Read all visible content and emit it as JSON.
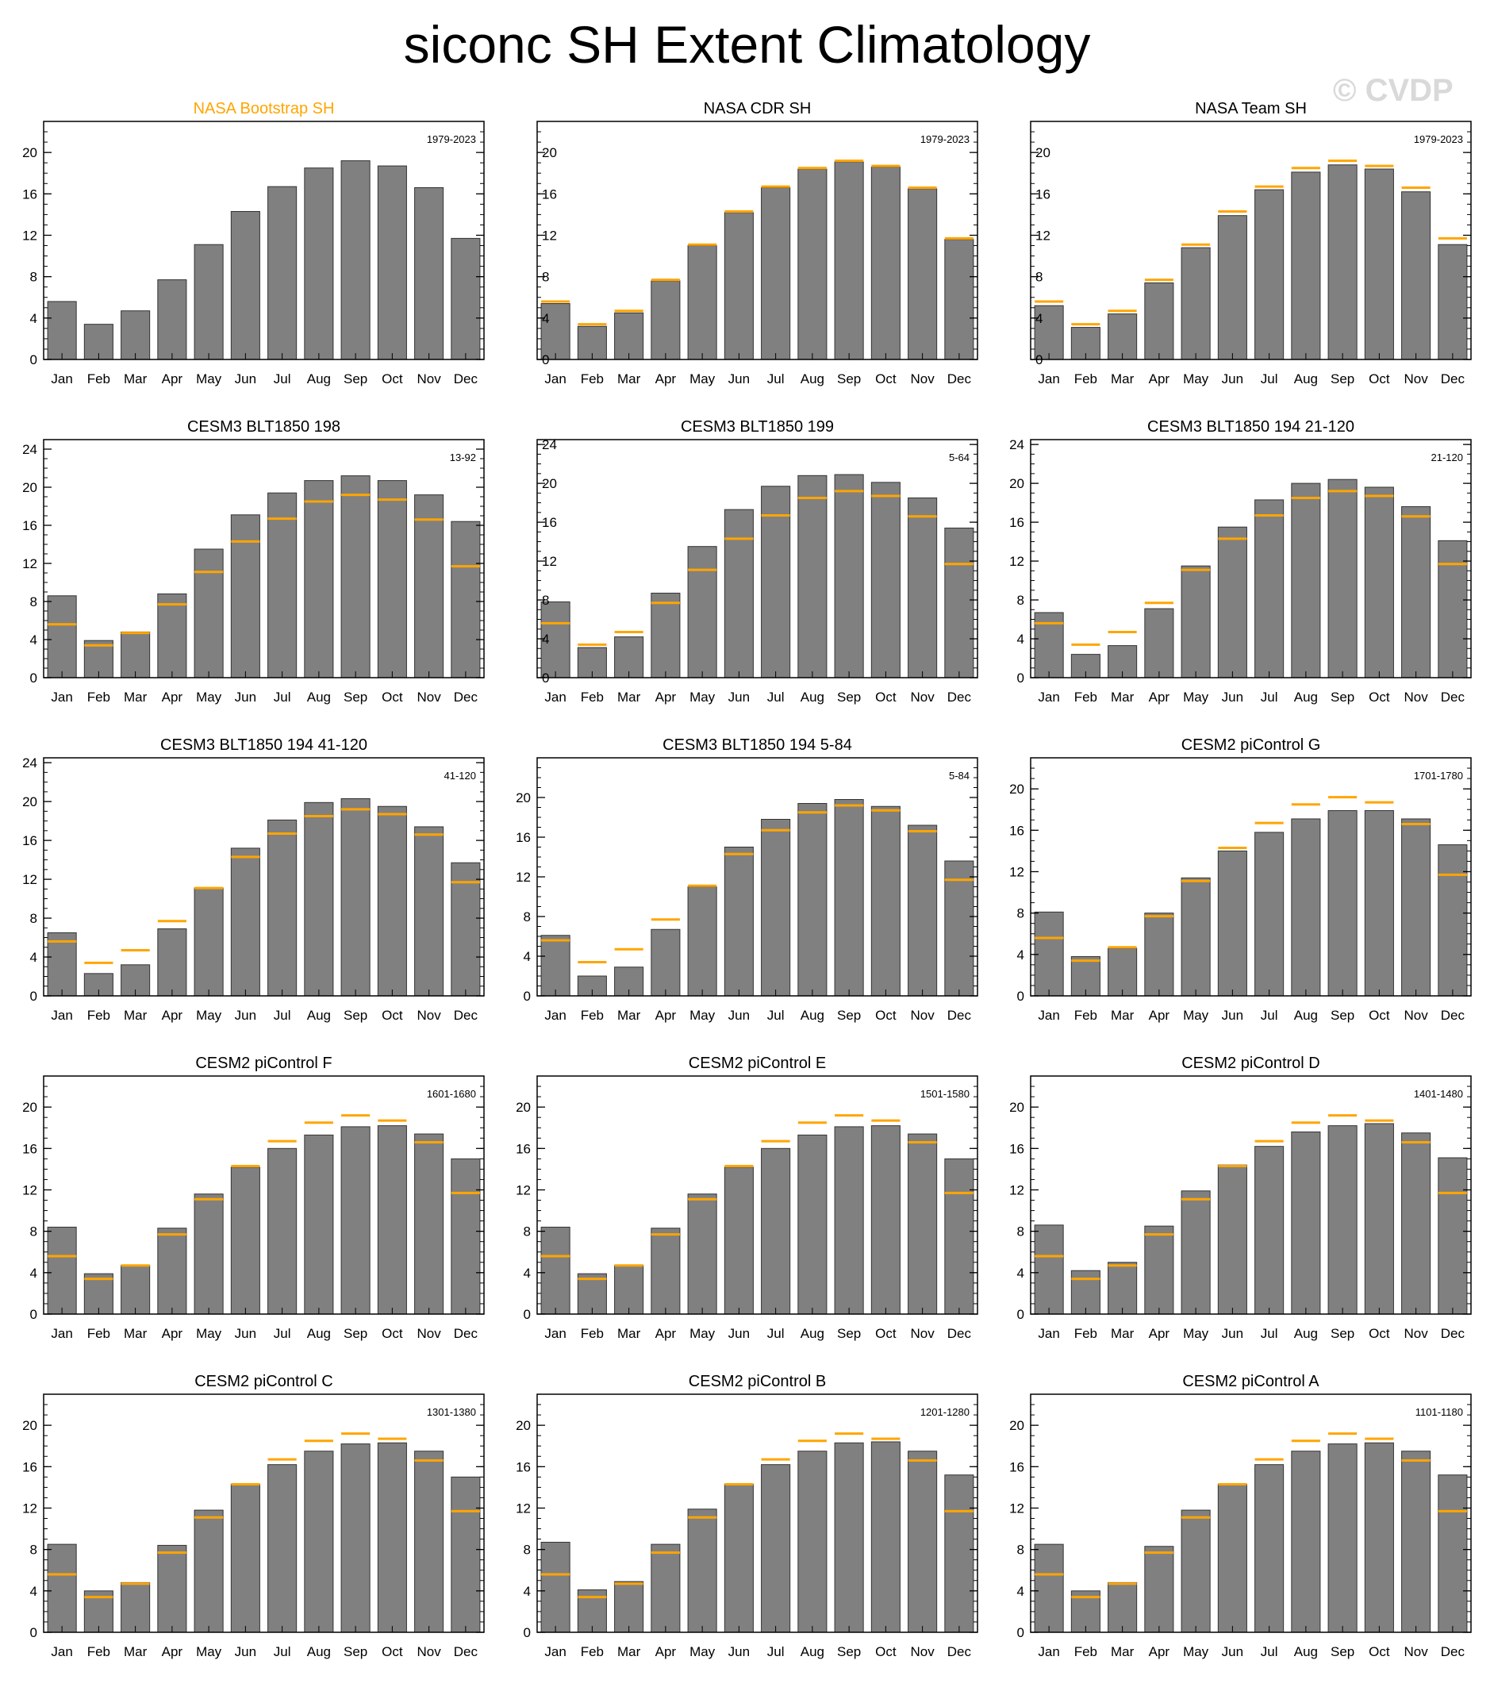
{
  "title": "siconc SH Extent Climatology",
  "watermark": "© CVDP",
  "colors": {
    "bar": "#808080",
    "reference": "#ffa500",
    "obs_title": "#ffa500"
  },
  "months": [
    "Jan",
    "Feb",
    "Mar",
    "Apr",
    "May",
    "Jun",
    "Jul",
    "Aug",
    "Sep",
    "Oct",
    "Nov",
    "Dec"
  ],
  "reference": [
    5.6,
    3.4,
    4.7,
    7.7,
    11.1,
    14.3,
    16.7,
    18.5,
    19.2,
    18.7,
    16.6,
    11.7
  ],
  "chart_data": [
    {
      "type": "bar",
      "title": "NASA Bootstrap SH",
      "period": "1979-2023",
      "ylim": [
        0,
        23
      ],
      "ticks": [
        0,
        4,
        8,
        12,
        16,
        20
      ],
      "ticks_side": "left",
      "title_color": "#ffa500",
      "show_ref": false,
      "values": [
        5.6,
        3.4,
        4.7,
        7.7,
        11.1,
        14.3,
        16.7,
        18.5,
        19.2,
        18.7,
        16.6,
        11.7
      ]
    },
    {
      "type": "bar",
      "title": "NASA CDR SH",
      "period": "1979-2023",
      "ylim": [
        0,
        23
      ],
      "ticks": [
        0,
        4,
        8,
        12,
        16,
        20
      ],
      "ticks_side": "right",
      "title_color": "#000000",
      "show_ref": true,
      "values": [
        5.4,
        3.2,
        4.5,
        7.6,
        11.0,
        14.2,
        16.6,
        18.4,
        19.1,
        18.6,
        16.5,
        11.6
      ]
    },
    {
      "type": "bar",
      "title": "NASA Team SH",
      "period": "1979-2023",
      "ylim": [
        0,
        23
      ],
      "ticks": [
        0,
        4,
        8,
        12,
        16,
        20
      ],
      "ticks_side": "right",
      "title_color": "#000000",
      "show_ref": true,
      "values": [
        5.2,
        3.1,
        4.4,
        7.4,
        10.8,
        13.9,
        16.4,
        18.1,
        18.8,
        18.4,
        16.2,
        11.1
      ]
    },
    {
      "type": "bar",
      "title": "CESM3 BLT1850 198",
      "period": "13-92",
      "ylim": [
        0,
        25
      ],
      "ticks": [
        0,
        4,
        8,
        12,
        16,
        20,
        24
      ],
      "ticks_side": "left",
      "title_color": "#000000",
      "show_ref": true,
      "values": [
        8.6,
        3.9,
        4.8,
        8.8,
        13.5,
        17.1,
        19.4,
        20.7,
        21.2,
        20.7,
        19.2,
        16.4
      ]
    },
    {
      "type": "bar",
      "title": "CESM3 BLT1850 199",
      "period": "5-64",
      "ylim": [
        0,
        24.5
      ],
      "ticks": [
        0,
        4,
        8,
        12,
        16,
        20,
        24
      ],
      "ticks_side": "right",
      "title_color": "#000000",
      "show_ref": true,
      "values": [
        7.8,
        3.1,
        4.2,
        8.7,
        13.5,
        17.3,
        19.7,
        20.8,
        20.9,
        20.1,
        18.5,
        15.4
      ]
    },
    {
      "type": "bar",
      "title": "CESM3 BLT1850 194 21-120",
      "period": "21-120",
      "ylim": [
        0,
        24.5
      ],
      "ticks": [
        0,
        4,
        8,
        12,
        16,
        20,
        24
      ],
      "ticks_side": "left",
      "title_color": "#000000",
      "show_ref": true,
      "values": [
        6.7,
        2.4,
        3.3,
        7.1,
        11.5,
        15.5,
        18.3,
        20.0,
        20.4,
        19.6,
        17.6,
        14.1
      ]
    },
    {
      "type": "bar",
      "title": "CESM3 BLT1850 194 41-120",
      "period": "41-120",
      "ylim": [
        0,
        24.5
      ],
      "ticks": [
        0,
        4,
        8,
        12,
        16,
        20,
        24
      ],
      "ticks_side": "left",
      "title_color": "#000000",
      "show_ref": true,
      "values": [
        6.5,
        2.3,
        3.2,
        6.9,
        11.1,
        15.2,
        18.1,
        19.9,
        20.3,
        19.5,
        17.4,
        13.7
      ]
    },
    {
      "type": "bar",
      "title": "CESM3 BLT1850 194 5-84",
      "period": "5-84",
      "ylim": [
        0,
        24
      ],
      "ticks": [
        0,
        4,
        8,
        12,
        16,
        20
      ],
      "ticks_side": "left",
      "title_color": "#000000",
      "show_ref": true,
      "values": [
        6.1,
        2.0,
        2.9,
        6.7,
        11.0,
        15.0,
        17.8,
        19.4,
        19.8,
        19.1,
        17.2,
        13.6
      ]
    },
    {
      "type": "bar",
      "title": "CESM2 piControl G",
      "period": "1701-1780",
      "ylim": [
        0,
        23
      ],
      "ticks": [
        0,
        4,
        8,
        12,
        16,
        20
      ],
      "ticks_side": "left",
      "title_color": "#000000",
      "show_ref": true,
      "values": [
        8.1,
        3.8,
        4.6,
        8.0,
        11.4,
        14.0,
        15.8,
        17.1,
        17.9,
        17.9,
        17.1,
        14.6
      ]
    },
    {
      "type": "bar",
      "title": "CESM2 piControl F",
      "period": "1601-1680",
      "ylim": [
        0,
        23
      ],
      "ticks": [
        0,
        4,
        8,
        12,
        16,
        20
      ],
      "ticks_side": "left",
      "title_color": "#000000",
      "show_ref": true,
      "values": [
        8.4,
        3.9,
        4.7,
        8.3,
        11.6,
        14.2,
        16.0,
        17.3,
        18.1,
        18.2,
        17.4,
        15.0
      ]
    },
    {
      "type": "bar",
      "title": "CESM2 piControl E",
      "period": "1501-1580",
      "ylim": [
        0,
        23
      ],
      "ticks": [
        0,
        4,
        8,
        12,
        16,
        20
      ],
      "ticks_side": "left",
      "title_color": "#000000",
      "show_ref": true,
      "values": [
        8.4,
        3.9,
        4.7,
        8.3,
        11.6,
        14.2,
        16.0,
        17.3,
        18.1,
        18.2,
        17.4,
        15.0
      ]
    },
    {
      "type": "bar",
      "title": "CESM2 piControl D",
      "period": "1401-1480",
      "ylim": [
        0,
        23
      ],
      "ticks": [
        0,
        4,
        8,
        12,
        16,
        20
      ],
      "ticks_side": "left",
      "title_color": "#000000",
      "show_ref": true,
      "values": [
        8.6,
        4.2,
        5.0,
        8.5,
        11.9,
        14.4,
        16.2,
        17.6,
        18.2,
        18.4,
        17.5,
        15.1
      ]
    },
    {
      "type": "bar",
      "title": "CESM2 piControl C",
      "period": "1301-1380",
      "ylim": [
        0,
        23
      ],
      "ticks": [
        0,
        4,
        8,
        12,
        16,
        20
      ],
      "ticks_side": "left",
      "title_color": "#000000",
      "show_ref": true,
      "values": [
        8.5,
        4.0,
        4.8,
        8.4,
        11.8,
        14.3,
        16.2,
        17.5,
        18.2,
        18.3,
        17.5,
        15.0
      ]
    },
    {
      "type": "bar",
      "title": "CESM2 piControl B",
      "period": "1201-1280",
      "ylim": [
        0,
        23
      ],
      "ticks": [
        0,
        4,
        8,
        12,
        16,
        20
      ],
      "ticks_side": "left",
      "title_color": "#000000",
      "show_ref": true,
      "values": [
        8.7,
        4.1,
        4.9,
        8.5,
        11.9,
        14.3,
        16.2,
        17.5,
        18.3,
        18.4,
        17.5,
        15.2
      ]
    },
    {
      "type": "bar",
      "title": "CESM2 piControl A",
      "period": "1101-1180",
      "ylim": [
        0,
        23
      ],
      "ticks": [
        0,
        4,
        8,
        12,
        16,
        20
      ],
      "ticks_side": "left",
      "title_color": "#000000",
      "show_ref": true,
      "values": [
        8.5,
        4.0,
        4.8,
        8.3,
        11.8,
        14.3,
        16.2,
        17.5,
        18.2,
        18.3,
        17.5,
        15.2
      ]
    }
  ]
}
